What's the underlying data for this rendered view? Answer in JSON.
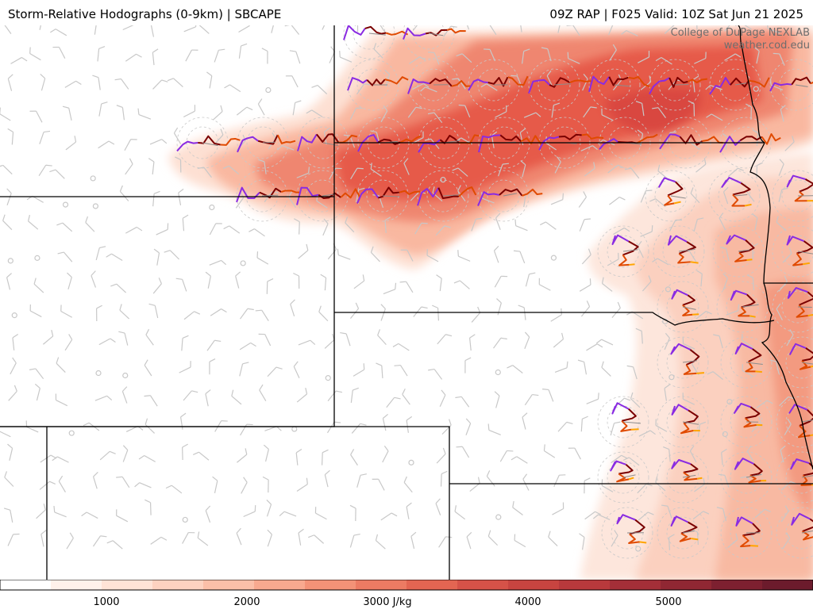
{
  "header": {
    "title_left": "Storm-Relative Hodographs (0-9km) | SBCAPE",
    "title_right": "09Z RAP | F025 Valid: 10Z Sat Jun 21 2025"
  },
  "credit": {
    "line1": "College of DuPage NEXLAB",
    "line2": "weather.cod.edu"
  },
  "colorbar": {
    "labels": [
      "1000",
      "2000",
      "3000 J/kg",
      "4000",
      "5000"
    ],
    "colors": [
      "#ffffff",
      "#fff1ea",
      "#ffe3d6",
      "#fdd2c0",
      "#fbbfa8",
      "#f8a98f",
      "#f39277",
      "#ec7b63",
      "#e36552",
      "#d65248",
      "#c84440",
      "#b8393c",
      "#a42f38",
      "#902733",
      "#7d2030",
      "#6c1b2c"
    ]
  },
  "map": {
    "cape_color": "#e8473c",
    "hodo_colors": [
      "#8a2be2",
      "#7a0000",
      "#e04a00",
      "#ffa500"
    ],
    "barb_color": "#c8c8c8",
    "border_color": "#000000"
  }
}
